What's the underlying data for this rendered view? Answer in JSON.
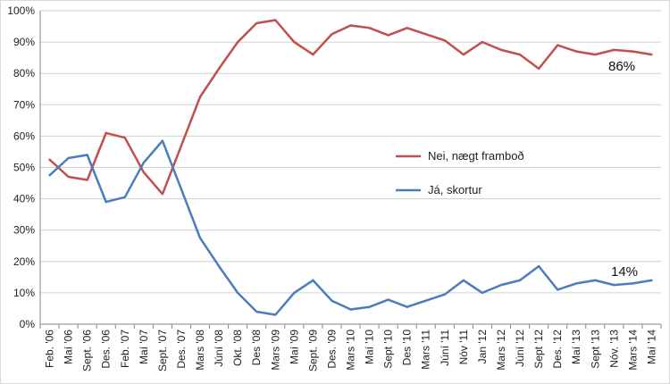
{
  "chart_data": {
    "type": "line",
    "title": "",
    "xlabel": "",
    "ylabel": "",
    "ylim": [
      0,
      100
    ],
    "ytick_labels": [
      "0%",
      "10%",
      "20%",
      "30%",
      "40%",
      "50%",
      "60%",
      "70%",
      "80%",
      "90%",
      "100%"
    ],
    "grid": true,
    "legend_position": "center-right",
    "categories": [
      "Feb. '06",
      "Maí '06",
      "Sept. '06",
      "Des. '06",
      "Feb. '07",
      "Maí '07",
      "Sept. '07",
      "Des. '07",
      "Mars '08",
      "Júní '08",
      "Okt. '08",
      "Des '08",
      "Mars '09",
      "Maí '09",
      "Sept. '09",
      "Des. '09",
      "Mars '10",
      "Maí '10",
      "Sept '10",
      "Des '10",
      "Mars '11",
      "Júní '11",
      "Nóv '11",
      "Jan '12",
      "Mars '12",
      "Júní '12",
      "Sept '12",
      "Des. '12",
      "Maí '13",
      "Sept '13",
      "Nóv. '13",
      "Mars '14",
      "Maí '14"
    ],
    "series": [
      {
        "name": "Nei, nægt framboð",
        "color": "#c0504d",
        "values": [
          52.5,
          47,
          46,
          61,
          59.5,
          48.5,
          41.5,
          57,
          72.5,
          81.5,
          90,
          96,
          97,
          90,
          86,
          92.5,
          95.3,
          94.5,
          92.2,
          94.5,
          92.5,
          90.5,
          86,
          90,
          87.5,
          86,
          81.5,
          89,
          87,
          86,
          87.5,
          87,
          86
        ]
      },
      {
        "name": "Já, skortur",
        "color": "#4a7ebb",
        "values": [
          47.5,
          53,
          54,
          39,
          40.5,
          51.5,
          58.5,
          43,
          27.5,
          18.5,
          10,
          4,
          3,
          10,
          14,
          7.5,
          4.7,
          5.5,
          7.8,
          5.5,
          7.5,
          9.5,
          14,
          10,
          12.5,
          14,
          18.5,
          11,
          13,
          14,
          12.5,
          13,
          14
        ]
      }
    ],
    "annotations": [
      {
        "text": "86%",
        "series": 0,
        "index": 32
      },
      {
        "text": "14%",
        "series": 1,
        "index": 32
      }
    ]
  }
}
